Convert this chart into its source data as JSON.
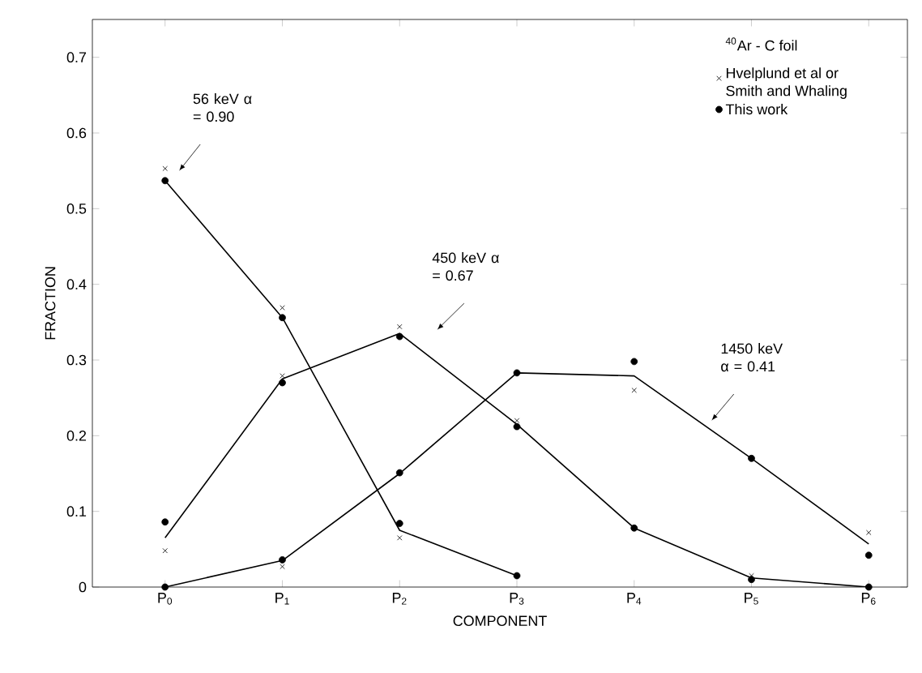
{
  "chart_data": {
    "type": "line",
    "xlabel": "COMPONENT",
    "ylabel": "FRACTION",
    "categories": [
      "P$_{0}$",
      "P$_{1}$",
      "P$_{2}$",
      "P$_{3}$",
      "P$_{4}$",
      "P$_{5}$",
      "P$_{6}$"
    ],
    "ylim": [
      0,
      0.75
    ],
    "yticks": [
      0,
      0.1,
      0.2,
      0.3,
      0.4,
      0.5,
      0.6,
      0.7
    ],
    "legend": "top right",
    "legend_title": "$^{40}$Ar - C foil",
    "grid": false,
    "annotations": [
      "56 keV α = 0.90",
      "450 keV α = 0.67",
      "1450 keV α = 0.41"
    ],
    "series": [
      {
        "type": "line",
        "color": "#000000",
        "marker": "none",
        "values": [
          0.537,
          0.356,
          0.075,
          0.015,
          null,
          null,
          null
        ]
      },
      {
        "type": "line",
        "color": "#000000",
        "marker": "none",
        "values": [
          0.065,
          0.275,
          0.335,
          0.215,
          0.078,
          0.012,
          0
        ]
      },
      {
        "type": "line",
        "color": "#000000",
        "marker": "none",
        "values": [
          0,
          0.035,
          0.15,
          0.283,
          0.279,
          0.17,
          0.057
        ]
      },
      {
        "type": "scatter",
        "name": "Hvelplund et al or Smith and Whaling",
        "color": "#000000",
        "marker": "cross",
        "values": [
          0.553,
          0.369,
          0.065,
          null,
          null,
          null,
          null
        ]
      },
      {
        "type": "scatter",
        "color": "#000000",
        "marker": "cross",
        "values": [
          0.048,
          0.279,
          0.344,
          0.22,
          null,
          0.015,
          null
        ]
      },
      {
        "type": "scatter",
        "color": "#000000",
        "marker": "cross",
        "values": [
          null,
          0.027,
          null,
          null,
          0.26,
          null,
          0.072
        ]
      },
      {
        "type": "scatter",
        "name": "This work",
        "color": "#000000",
        "marker": "circle",
        "values": [
          0.537,
          0.356,
          0.084,
          0.015,
          null,
          null,
          null
        ]
      },
      {
        "type": "scatter",
        "color": "#000000",
        "marker": "circle",
        "values": [
          0.086,
          0.27,
          0.331,
          0.212,
          0.078,
          0.01,
          0
        ]
      },
      {
        "type": "scatter",
        "color": "#000000",
        "marker": "circle",
        "values": [
          0,
          0.036,
          0.151,
          0.283,
          0.298,
          0.17,
          0.042
        ]
      }
    ]
  }
}
